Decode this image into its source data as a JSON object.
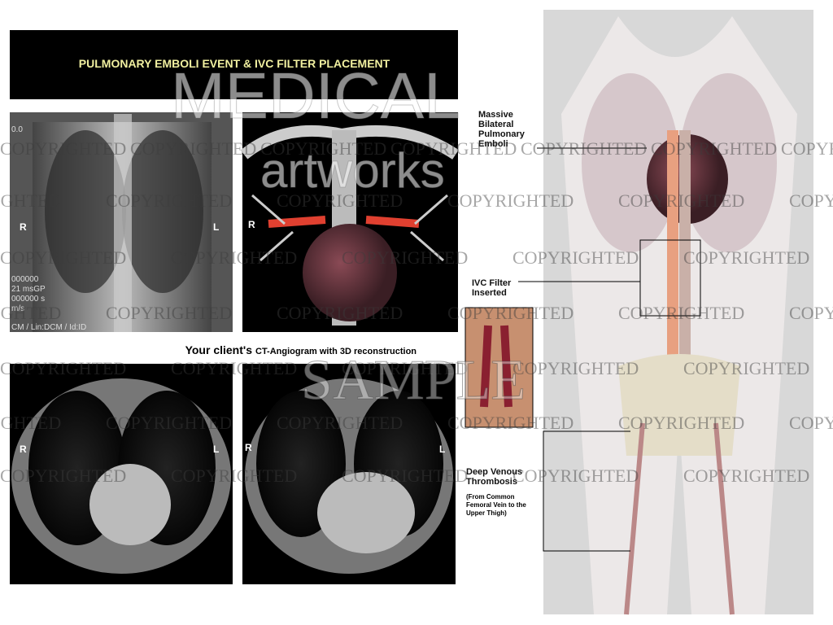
{
  "header": {
    "title": "PULMONARY EMBOLI EVENT & IVC FILTER PLACEMENT"
  },
  "xray": {
    "side_labels": [
      "R",
      "L"
    ],
    "overlay": [
      "0.0",
      "000000",
      "21 msGP",
      "000000 s",
      "m/s",
      "CM / Lin:DCM / Id:ID"
    ]
  },
  "reconstruction": {
    "side_labels": [
      "R"
    ]
  },
  "caption": {
    "lead": "Your client's",
    "rest": "CT-Angiogram with 3D reconstruction"
  },
  "ct_left": {
    "side_labels": [
      "R",
      "L"
    ]
  },
  "ct_right": {
    "side_labels": [
      "R",
      "L"
    ]
  },
  "annotations": [
    {
      "lines": [
        "Massive",
        "Bilateral",
        "Pulmonary",
        "Emboli"
      ]
    },
    {
      "lines": [
        "IVC Filter",
        "Inserted"
      ]
    },
    {
      "lines": [
        "Deep Venous",
        "Thrombosis"
      ],
      "note": [
        "(From Common",
        "Femoral Vein to the",
        "Upper Thigh)"
      ]
    }
  ],
  "watermark": {
    "copyright": "COPYRIGHTED",
    "brand_top": "MEDICAL",
    "brand_bottom": "artworks",
    "sample": "SAMPLE"
  }
}
